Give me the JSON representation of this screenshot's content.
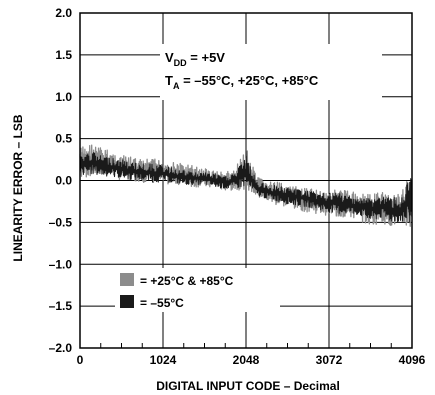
{
  "chart_data": {
    "type": "line",
    "xlabel": "DIGITAL INPUT CODE – Decimal",
    "ylabel": "LINEARITY ERROR – LSB",
    "xlim": [
      0,
      4096
    ],
    "ylim": [
      -2.0,
      2.0
    ],
    "x_ticks": [
      "0",
      "1024",
      "2048",
      "3072",
      "4096"
    ],
    "y_ticks": [
      "2.0",
      "1.5",
      "1.0",
      "0.5",
      "0.0",
      "–0.5",
      "–1.0",
      "–1.5",
      "–2.0"
    ],
    "grid": true,
    "annotation": {
      "vdd_main": "V",
      "vdd_sub": "DD",
      "vdd_value": " = +5V",
      "ta_main": "T",
      "ta_sub": "A",
      "ta_value": " = –55°C, +25°C, +85°C"
    },
    "legend_position": "bottom-left",
    "series": [
      {
        "name": "= +25°C & +85°C",
        "color": "#8c8c8c",
        "x": [
          0,
          128,
          256,
          384,
          512,
          640,
          768,
          896,
          1024,
          1152,
          1280,
          1408,
          1536,
          1664,
          1792,
          1920,
          2048,
          2176,
          2304,
          2432,
          2560,
          2688,
          2816,
          2944,
          3072,
          3200,
          3328,
          3456,
          3584,
          3712,
          3840,
          3968,
          4096
        ],
        "upper": [
          0.4,
          0.45,
          0.4,
          0.35,
          0.3,
          0.28,
          0.25,
          0.26,
          0.25,
          0.22,
          0.2,
          0.18,
          0.15,
          0.12,
          0.1,
          0.15,
          0.4,
          0.05,
          0.0,
          -0.02,
          -0.05,
          -0.08,
          -0.1,
          -0.1,
          -0.12,
          -0.1,
          -0.12,
          -0.15,
          -0.15,
          -0.12,
          -0.15,
          -0.15,
          0.2
        ],
        "lower": [
          0.0,
          0.05,
          0.05,
          0.05,
          0.0,
          0.0,
          -0.02,
          -0.03,
          -0.05,
          -0.05,
          -0.05,
          -0.08,
          -0.08,
          -0.1,
          -0.12,
          -0.12,
          -0.1,
          -0.2,
          -0.25,
          -0.3,
          -0.32,
          -0.35,
          -0.38,
          -0.4,
          -0.42,
          -0.45,
          -0.45,
          -0.48,
          -0.55,
          -0.5,
          -0.55,
          -0.55,
          -0.6
        ]
      },
      {
        "name": "= –55°C",
        "color": "#1a1a1a",
        "x": [
          0,
          128,
          256,
          384,
          512,
          640,
          768,
          896,
          1024,
          1152,
          1280,
          1408,
          1536,
          1664,
          1792,
          1920,
          2048,
          2176,
          2304,
          2432,
          2560,
          2688,
          2816,
          2944,
          3072,
          3200,
          3328,
          3456,
          3584,
          3712,
          3840,
          3968,
          4096
        ],
        "upper": [
          0.3,
          0.35,
          0.3,
          0.28,
          0.25,
          0.22,
          0.2,
          0.2,
          0.18,
          0.15,
          0.12,
          0.1,
          0.1,
          0.08,
          0.05,
          0.1,
          0.3,
          0.0,
          -0.05,
          -0.05,
          -0.08,
          -0.1,
          -0.12,
          -0.15,
          -0.15,
          -0.15,
          -0.18,
          -0.2,
          -0.2,
          -0.18,
          -0.2,
          -0.2,
          0.1
        ],
        "lower": [
          0.05,
          0.08,
          0.05,
          0.05,
          0.02,
          0.0,
          0.0,
          -0.02,
          -0.02,
          -0.03,
          -0.05,
          -0.05,
          -0.05,
          -0.08,
          -0.1,
          -0.1,
          -0.08,
          -0.18,
          -0.22,
          -0.25,
          -0.28,
          -0.3,
          -0.32,
          -0.35,
          -0.38,
          -0.4,
          -0.4,
          -0.42,
          -0.5,
          -0.45,
          -0.5,
          -0.5,
          -0.55
        ]
      }
    ]
  }
}
